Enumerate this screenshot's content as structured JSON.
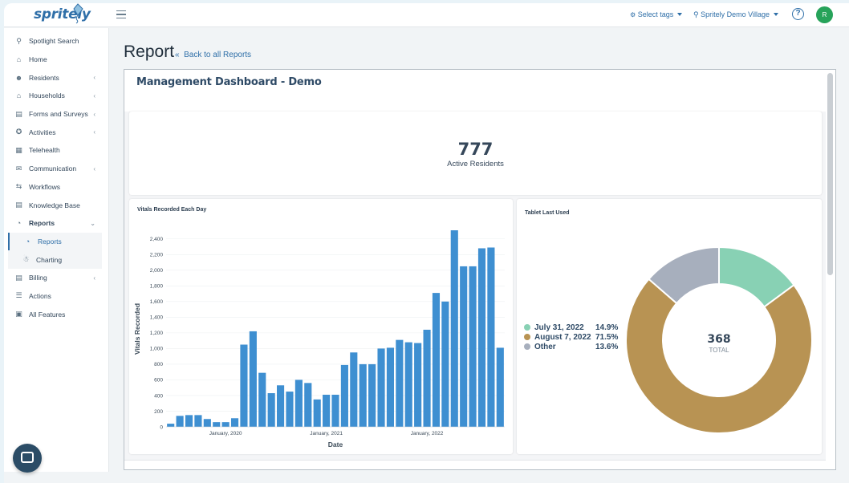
{
  "app": {
    "logo_text": "spritely"
  },
  "topbar": {
    "select_tags": "Select tags",
    "village": "Spritely Demo Village",
    "help": "?",
    "avatar_initial": "R"
  },
  "sidebar": {
    "items": [
      {
        "label": "Spotlight Search",
        "icon": "search-icon",
        "chevron": false
      },
      {
        "label": "Home",
        "icon": "home-icon",
        "chevron": false
      },
      {
        "label": "Residents",
        "icon": "residents-icon",
        "chevron": true
      },
      {
        "label": "Households",
        "icon": "house-icon",
        "chevron": true
      },
      {
        "label": "Forms and Surveys",
        "icon": "form-icon",
        "chevron": true
      },
      {
        "label": "Activities",
        "icon": "activity-icon",
        "chevron": true
      },
      {
        "label": "Telehealth",
        "icon": "telehealth-icon",
        "chevron": false
      },
      {
        "label": "Communication",
        "icon": "mail-icon",
        "chevron": true
      },
      {
        "label": "Workflows",
        "icon": "workflow-icon",
        "chevron": false
      },
      {
        "label": "Knowledge Base",
        "icon": "book-icon",
        "chevron": false
      },
      {
        "label": "Reports",
        "icon": "reports-icon",
        "chevron": true
      },
      {
        "label": "Reports",
        "icon": "reports-icon",
        "chevron": false
      },
      {
        "label": "Charting",
        "icon": "bell-icon",
        "chevron": false
      },
      {
        "label": "Billing",
        "icon": "billing-icon",
        "chevron": true
      },
      {
        "label": "Actions",
        "icon": "list-icon",
        "chevron": false
      },
      {
        "label": "All Features",
        "icon": "grid-icon",
        "chevron": false
      }
    ]
  },
  "page": {
    "title": "Report",
    "back_link": "Back to all Reports"
  },
  "dashboard": {
    "title": "Management Dashboard - Demo",
    "active_residents": {
      "value": "777",
      "label": "Active Residents"
    },
    "vitals_title": "Vitals Recorded Each Day",
    "tablet_title": "Tablet Last Used"
  },
  "chart_data": [
    {
      "type": "bar",
      "title": "Vitals Recorded Each Day",
      "xlabel": "Date",
      "ylabel": "Vitals Recorded",
      "ylim": [
        0,
        2500
      ],
      "yticks": [
        0,
        200,
        400,
        600,
        800,
        1000,
        1200,
        1400,
        1600,
        1800,
        2000,
        2200,
        2400
      ],
      "ytick_labels": [
        "0",
        "200",
        "400",
        "600",
        "800",
        "1,000",
        "1,200",
        "1,400",
        "1,600",
        "1,800",
        "2,000",
        "2,200",
        "2,400"
      ],
      "xtick_labels": [
        {
          "label": "January, 2020",
          "bar_index": 6
        },
        {
          "label": "January, 2021",
          "bar_index": 17
        },
        {
          "label": "January, 2022",
          "bar_index": 28
        }
      ],
      "values": [
        40,
        140,
        150,
        150,
        100,
        60,
        60,
        110,
        1050,
        1220,
        690,
        430,
        530,
        450,
        600,
        560,
        350,
        410,
        410,
        790,
        950,
        800,
        800,
        1000,
        1010,
        1110,
        1080,
        1070,
        1240,
        1710,
        1600,
        2510,
        2050,
        2050,
        2280,
        2290,
        1010
      ]
    },
    {
      "type": "pie",
      "title": "Tablet Last Used",
      "total": "368",
      "total_label": "TOTAL",
      "slices": [
        {
          "label": "July 31, 2022",
          "value": 14.9,
          "pct": "14.9%",
          "color": "#88d1b4"
        },
        {
          "label": "August 7, 2022",
          "value": 71.5,
          "pct": "71.5%",
          "color": "#b89353"
        },
        {
          "label": "Other",
          "value": 13.6,
          "pct": "13.6%",
          "color": "#a7afbd"
        }
      ]
    }
  ],
  "colors": {
    "bar": "#3e8fd1",
    "accent": "#2f6fa8",
    "avatar": "#27a35a"
  }
}
